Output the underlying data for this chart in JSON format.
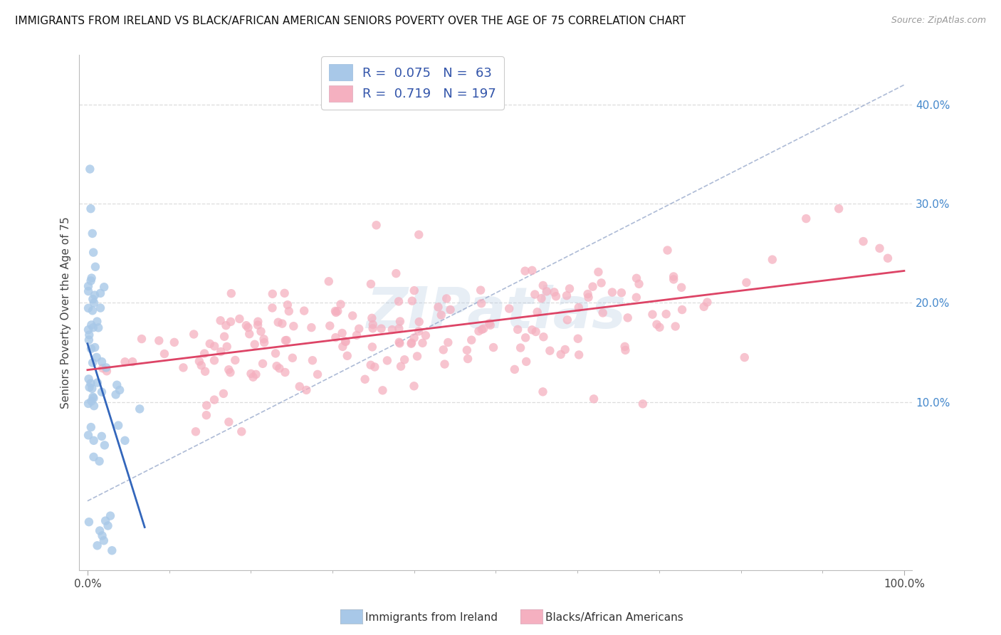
{
  "title": "IMMIGRANTS FROM IRELAND VS BLACK/AFRICAN AMERICAN SENIORS POVERTY OVER THE AGE OF 75 CORRELATION CHART",
  "source": "Source: ZipAtlas.com",
  "ylabel": "Seniors Poverty Over the Age of 75",
  "watermark_text": "ZIPatlas",
  "legend_blue_label": "Immigrants from Ireland",
  "legend_pink_label": "Blacks/African Americans",
  "blue_R": 0.075,
  "blue_N": 63,
  "pink_R": 0.719,
  "pink_N": 197,
  "blue_color": "#a8c8e8",
  "pink_color": "#f5b0c0",
  "blue_line_color": "#3366bb",
  "pink_line_color": "#dd4466",
  "dash_line_color": "#99aacc",
  "title_color": "#111111",
  "source_color": "#999999",
  "label_color": "#3355aa",
  "background_color": "#ffffff",
  "grid_color": "#dddddd",
  "right_tick_color": "#4488cc",
  "xlim": [
    -0.01,
    1.01
  ],
  "ylim": [
    -0.07,
    0.45
  ],
  "yticks_right": [
    0.1,
    0.2,
    0.3,
    0.4
  ],
  "yticklabels_right": [
    "10.0%",
    "20.0%",
    "30.0%",
    "40.0%"
  ],
  "blue_seed": 12,
  "pink_seed": 99
}
